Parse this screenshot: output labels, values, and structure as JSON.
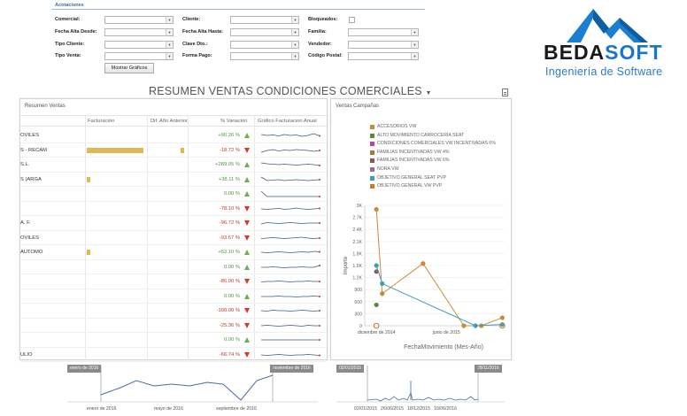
{
  "filters": {
    "title": "Acotaciones",
    "comercial": "Comercial:",
    "fecha_alta_desde": "Fecha Alta Desde:",
    "tipo_cliente": "Tipo Cliente:",
    "tipo_venta": "Tipo Venta:",
    "cliente": "Cliente:",
    "fecha_alta_hasta": "Fecha Alta Hasta:",
    "clave_dto": "Clave Dto.:",
    "forma_pago": "Forma Pago:",
    "bloqueados": "Bloqueados:",
    "familia": "Familia:",
    "vendedor": "Vendedor:",
    "codigo_postal": "Código Postal:",
    "button": "Mostrar Gráficos"
  },
  "logo": {
    "part1": "BEDA",
    "part2": "SOFT",
    "tagline": "Ingeniería de Software"
  },
  "page_title": "RESUMEN VENTAS CONDICIONES COMERCIALES",
  "resumen": {
    "title": "Resumen Ventas",
    "headers": {
      "facturacion": "Facturación",
      "dif": "Dif. Año Anterior",
      "variacion": "% Variación",
      "grafico": "Gráfico Facturacion Anual"
    },
    "rows": [
      {
        "name": "OVILES",
        "fact": 0,
        "dif": 0,
        "pct": "+90.26 %",
        "dir": "up",
        "spark": [
          0.6,
          0.5,
          0.55,
          0.45,
          0.6,
          0.5,
          0.55,
          0.4,
          0.5,
          0.7,
          0.45
        ]
      },
      {
        "name": "S - RECAM",
        "fact": 1.0,
        "dif": 0.5,
        "pct": "-18.72 %",
        "dir": "down",
        "spark": [
          0.3,
          0.5,
          0.6,
          0.45,
          0.55,
          0.5,
          0.6,
          0.55,
          0.5,
          0.4,
          0.5
        ]
      },
      {
        "name": "S.L.",
        "fact": 0,
        "dif": 0,
        "pct": "+289.05 %",
        "dir": "up",
        "spark": [
          0.7,
          0.6,
          0.55,
          0.5,
          0.55,
          0.5,
          0.45,
          0.5,
          0.55,
          0.5,
          0.4
        ]
      },
      {
        "name": "S (ARGA",
        "fact": 0.06,
        "dif": 0,
        "pct": "+38.11 %",
        "dir": "up",
        "spark": [
          0.8,
          0.4,
          0.45,
          0.5,
          0.4,
          0.45,
          0.5,
          0.45,
          0.4,
          0.45,
          0.5
        ]
      },
      {
        "name": "",
        "fact": 0,
        "dif": 0,
        "pct": "0.00 %",
        "dir": "up",
        "spark": [
          0.8,
          0.2,
          0.2,
          0.2,
          0.2,
          0.2,
          0.2,
          0.2,
          0.2,
          0.2,
          0.2
        ]
      },
      {
        "name": "",
        "fact": 0,
        "dif": 0,
        "pct": "-78.10 %",
        "dir": "down",
        "spark": [
          0.5,
          0.45,
          0.5,
          0.55,
          0.45,
          0.5,
          0.6,
          0.5,
          0.45,
          0.5,
          0.55
        ]
      },
      {
        "name": "A. F.",
        "fact": 0,
        "dif": 0,
        "pct": "-96.72 %",
        "dir": "down",
        "spark": [
          0.4,
          0.55,
          0.5,
          0.45,
          0.5,
          0.55,
          0.5,
          0.45,
          0.5,
          0.5,
          0.5
        ]
      },
      {
        "name": "OVILES",
        "fact": 0,
        "dif": 0,
        "pct": "-93.67 %",
        "dir": "down",
        "spark": [
          0.45,
          0.5,
          0.55,
          0.5,
          0.45,
          0.5,
          0.55,
          0.6,
          0.5,
          0.45,
          0.5
        ]
      },
      {
        "name": "AUTOMO",
        "fact": 0.06,
        "dif": 0,
        "pct": "+53.10 %",
        "dir": "up",
        "spark": [
          0.5,
          0.45,
          0.5,
          0.55,
          0.5,
          0.45,
          0.5,
          0.55,
          0.5,
          0.6,
          0.55
        ]
      },
      {
        "name": "",
        "fact": 0,
        "dif": 0,
        "pct": "0.00 %",
        "dir": "up",
        "spark": [
          0.5,
          0.5,
          0.55,
          0.5,
          0.45,
          0.5,
          0.5,
          0.55,
          0.5,
          0.5,
          0.7
        ]
      },
      {
        "name": "",
        "fact": 0,
        "dif": 0,
        "pct": "-86.00 %",
        "dir": "down",
        "spark": [
          0.45,
          0.5,
          0.5,
          0.55,
          0.5,
          0.45,
          0.5,
          0.5,
          0.55,
          0.5,
          0.5
        ]
      },
      {
        "name": "",
        "fact": 0,
        "dif": 0,
        "pct": "0.00 %",
        "dir": "up",
        "spark": [
          0.5,
          0.5,
          0.5,
          0.55,
          0.5,
          0.5,
          0.45,
          0.5,
          0.5,
          0.55,
          0.5
        ]
      },
      {
        "name": "",
        "fact": 0,
        "dif": 0,
        "pct": "-100.00 %",
        "dir": "down",
        "spark": [
          0.5,
          0.45,
          0.55,
          0.5,
          0.5,
          0.45,
          0.5,
          0.55,
          0.5,
          0.45,
          0.5
        ]
      },
      {
        "name": "",
        "fact": 0,
        "dif": 0,
        "pct": "-25.36 %",
        "dir": "down",
        "spark": [
          0.5,
          0.55,
          0.5,
          0.45,
          0.5,
          0.55,
          0.5,
          0.45,
          0.55,
          0.5,
          0.5
        ]
      },
      {
        "name": "",
        "fact": 0,
        "dif": 0,
        "pct": "0.00 %",
        "dir": "up",
        "spark": [
          0.5,
          0.5,
          0.5,
          0.5,
          0.5,
          0.5,
          0.5,
          0.5,
          0.5,
          0.5,
          0.5
        ]
      },
      {
        "name": "ULIO",
        "fact": 0,
        "dif": 0,
        "pct": "-66.74 %",
        "dir": "down",
        "spark": [
          0.5,
          0.45,
          0.5,
          0.55,
          0.5,
          0.45,
          0.5,
          0.5,
          0.55,
          0.5,
          0.45
        ]
      }
    ]
  },
  "campanas": {
    "title": "Ventas Campañas"
  },
  "chart_data": {
    "type": "line",
    "title": "Ventas Campañas",
    "xlabel": "FechaMovimiento (Mes-Año)",
    "ylabel": "Importe",
    "y_ticks": [
      "0",
      "300",
      "600",
      "900",
      "1.2K",
      "1.5K",
      "1.8K",
      "2.1K",
      "2.4K",
      "2.7K",
      "3K"
    ],
    "x_ticks": [
      "diciembre de 2014",
      "junio de 2015"
    ],
    "ylim": [
      0,
      3000
    ],
    "xlim": [
      0,
      12
    ],
    "series": [
      {
        "name": "ACCESORIOS VW",
        "color": "#c98a3a",
        "points": [
          [
            1,
            2900
          ],
          [
            1.5,
            800
          ],
          [
            5,
            1550
          ],
          [
            8.5,
            0
          ],
          [
            10,
            0
          ],
          [
            11.8,
            200
          ]
        ]
      },
      {
        "name": "ALTO MOVIMIENTO CARROCERÍA SEAT",
        "color": "#5b8a3a",
        "points": [
          [
            1,
            520
          ]
        ]
      },
      {
        "name": "CONDICIONES COMERCIALES VW INCENTIVADAS 6%",
        "color": "#b8459a",
        "points": []
      },
      {
        "name": "FAMILIAS INCENTIVADAS VW 4%",
        "color": "#a07a3a",
        "points": []
      },
      {
        "name": "FAMILIAS INCENTIVADAS VW 6%",
        "color": "#8a5a5a",
        "points": [
          [
            1,
            1350
          ]
        ]
      },
      {
        "name": "NORA VW",
        "color": "#9a6a9a",
        "points": []
      },
      {
        "name": "OBJETIVO GENERAL SEAT PVP",
        "color": "#3aa0b8",
        "points": [
          [
            1,
            1500
          ],
          [
            1.5,
            1050
          ],
          [
            9.5,
            0
          ],
          [
            11.8,
            30
          ]
        ]
      },
      {
        "name": "OBJETIVO GENERAL VW PVP",
        "color": "#c97a2a",
        "points": [
          [
            1,
            0
          ],
          [
            11.8,
            0
          ]
        ]
      }
    ]
  },
  "nav_left": {
    "start": "enero de 2016",
    "end": "noviembre de 2016",
    "labels": [
      "enero de 2016",
      "mayo de 2016",
      "septiembre de 2016"
    ]
  },
  "nav_right": {
    "start": "02/01/2015",
    "end": "28/11/2016",
    "labels": [
      "02/01/2015",
      "26/06/2015",
      "18/12/2015",
      "10/06/2016"
    ]
  }
}
